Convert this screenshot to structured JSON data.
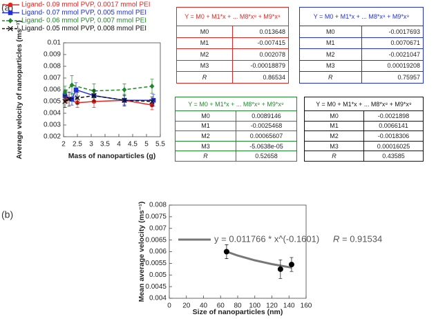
{
  "panel_labels": [
    "(a)",
    "(b)"
  ],
  "chart_data": [
    {
      "type": "line",
      "x_label": "Mass of nanoparticles (g)",
      "y_label": "Average velocity of nanoparticles (ms⁻¹)",
      "xlim": [
        2,
        5.5
      ],
      "xticks": [
        2,
        2.5,
        3,
        3.5,
        4,
        4.5,
        5,
        5.5
      ],
      "ylim": [
        0.002,
        0.01
      ],
      "yticks": [
        0.002,
        0.003,
        0.004,
        0.005,
        0.006,
        0.007,
        0.008,
        0.009,
        0.01
      ],
      "grid": false,
      "series": [
        {
          "name": "Ligand- 0.09 mmol PVP, 0.0017 mmol PEI",
          "color": "#e8231f",
          "marker": "circle",
          "dashed": false,
          "x": [
            2.1,
            2.5,
            3.1,
            4.2,
            5.2
          ],
          "values": [
            0.0052,
            0.0049,
            0.005,
            0.0051,
            0.0047
          ],
          "errors": [
            0.0003,
            0.0004,
            0.0005,
            0.0004,
            0.0004
          ]
        },
        {
          "name": "Ligand- 0.07 mmol PVP, 0.005 mmol PEI",
          "color": "#1f2fe0",
          "marker": "square",
          "dashed": false,
          "x": [
            2.05,
            2.3,
            2.45,
            3.1,
            4.2,
            5.25
          ],
          "values": [
            0.0055,
            0.0052,
            0.006,
            0.0055,
            0.0051,
            0.0051
          ],
          "errors": [
            0.0004,
            0.0005,
            0.0006,
            0.0004,
            0.0004,
            0.0005
          ]
        },
        {
          "name": "Ligand- 0.06 mmol PVP, 0.007 mmol PEI",
          "color": "#1d8a2a",
          "marker": "diamond",
          "dashed": true,
          "x": [
            2.05,
            2.3,
            3.1,
            4.2,
            5.2
          ],
          "values": [
            0.0058,
            0.0064,
            0.0059,
            0.006,
            0.0063
          ],
          "errors": [
            0.0005,
            0.0008,
            0.0006,
            0.0005,
            0.0006
          ]
        },
        {
          "name": "Ligand- 0.05 mmol PVP, 0.008 mmol PEI",
          "color": "#111111",
          "marker": "cross",
          "dashed": true,
          "x": [
            2.05,
            2.2,
            2.5,
            3.1,
            4.2,
            5.2
          ],
          "values": [
            0.005,
            0.0052,
            0.0053,
            0.0055,
            0.0051,
            0.005
          ],
          "errors": [
            0.0005,
            0.0006,
            0.0005,
            0.0005,
            0.0005,
            0.0004
          ]
        }
      ]
    },
    {
      "type": "scatter",
      "x_label": "Size of nanoparticles (nm)",
      "y_label": "Mean average velocity (ms⁻¹)",
      "xlim": [
        0,
        160
      ],
      "xticks": [
        0,
        20,
        40,
        60,
        80,
        100,
        120,
        140,
        160
      ],
      "ylim": [
        0.004,
        0.008
      ],
      "yticks": [
        0.004,
        0.0045,
        0.005,
        0.0055,
        0.006,
        0.0065,
        0.007,
        0.0075,
        0.008
      ],
      "grid": false,
      "points": {
        "color": "#000000",
        "x": [
          67,
          130,
          143
        ],
        "values": [
          0.006,
          0.00525,
          0.00545
        ],
        "errors": [
          0.0003,
          0.0004,
          0.0003
        ]
      },
      "fit": {
        "name": "y = 0.011766 * x^(-0.1601)",
        "color": "#777777",
        "x": [
          67,
          80,
          100,
          120,
          143
        ],
        "values": [
          0.006002,
          0.005834,
          0.005629,
          0.005467,
          0.005316
        ]
      },
      "fit_r_symbol": "R",
      "fit_r_text": "= 0.91534"
    }
  ],
  "fit_tables": [
    {
      "color": "#e8231f",
      "header": "Y = M0 + M1*x + ... M8*x⁸ + M9*x⁹",
      "rows": [
        [
          "M0",
          "0.013648"
        ],
        [
          "M1",
          "-0.007415"
        ],
        [
          "M2",
          "0.002078"
        ],
        [
          "M3",
          "-0.00018879"
        ],
        [
          "R",
          "0.86534"
        ]
      ]
    },
    {
      "color": "#1f2fe0",
      "header": "Y = M0 + M1*x + ... M8*x⁸ + M9*x⁹",
      "rows": [
        [
          "M0",
          "-0.0017693"
        ],
        [
          "M1",
          "0.0070671"
        ],
        [
          "M2",
          "-0.0021047"
        ],
        [
          "M3",
          "0.00019208"
        ],
        [
          "R",
          "0.75957"
        ]
      ]
    },
    {
      "color": "#1d8a2a",
      "header": "Y = M0 + M1*x + ... M8*x⁸ + M9*x⁹",
      "rows": [
        [
          "M0",
          "0.0089146"
        ],
        [
          "M1",
          "-0.0025468"
        ],
        [
          "M2",
          "0.00065607"
        ],
        [
          "M3",
          "-5.0638e-05"
        ],
        [
          "R",
          "0.52658"
        ]
      ]
    },
    {
      "color": "#111111",
      "header": "Y = M0 + M1*x + ... M8*x⁸ + M9*x⁹",
      "rows": [
        [
          "M0",
          "-0.0021898"
        ],
        [
          "M1",
          "0.0066141"
        ],
        [
          "M2",
          "-0.0018306"
        ],
        [
          "M3",
          "0.00016025"
        ],
        [
          "R",
          "0.43585"
        ]
      ]
    }
  ]
}
